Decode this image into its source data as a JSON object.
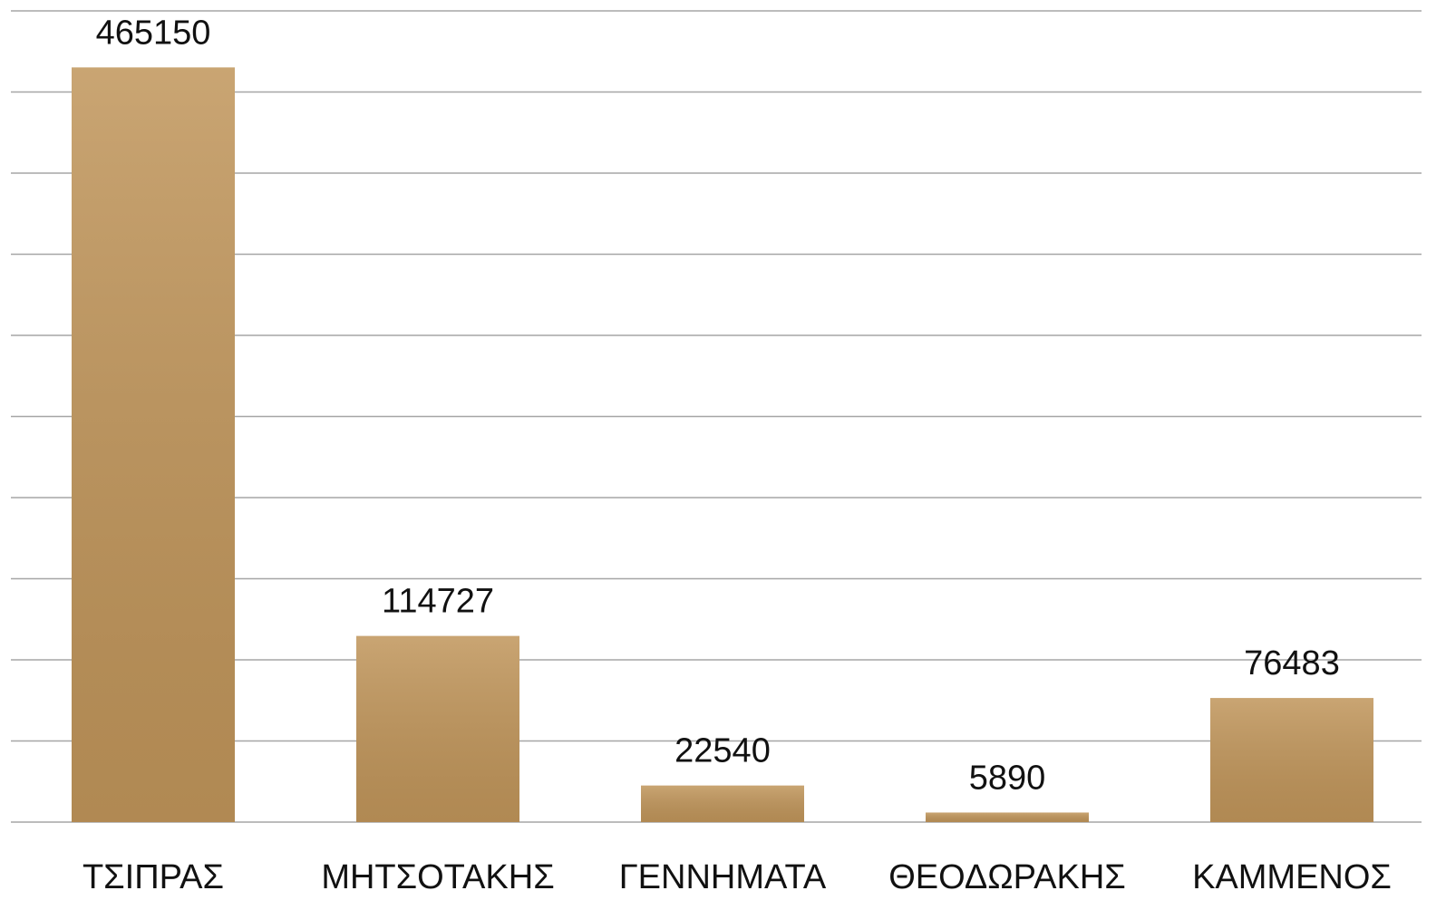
{
  "chart_data": {
    "type": "bar",
    "categories": [
      "ΤΣΙΠΡΑΣ",
      "ΜΗΤΣΟΤΑΚΗΣ",
      "ΓΕΝΝΗΜΑΤΑ",
      "ΘΕΟΔΩΡΑΚΗΣ",
      "ΚΑΜΜΕΝΟΣ"
    ],
    "values": [
      465150,
      114727,
      22540,
      5890,
      76483
    ],
    "color": "#c0955a",
    "ylim": [
      0,
      500000
    ],
    "yticks": [
      0,
      50000,
      100000,
      150000,
      200000,
      250000,
      300000,
      350000,
      400000,
      450000,
      500000
    ],
    "grid": true
  }
}
